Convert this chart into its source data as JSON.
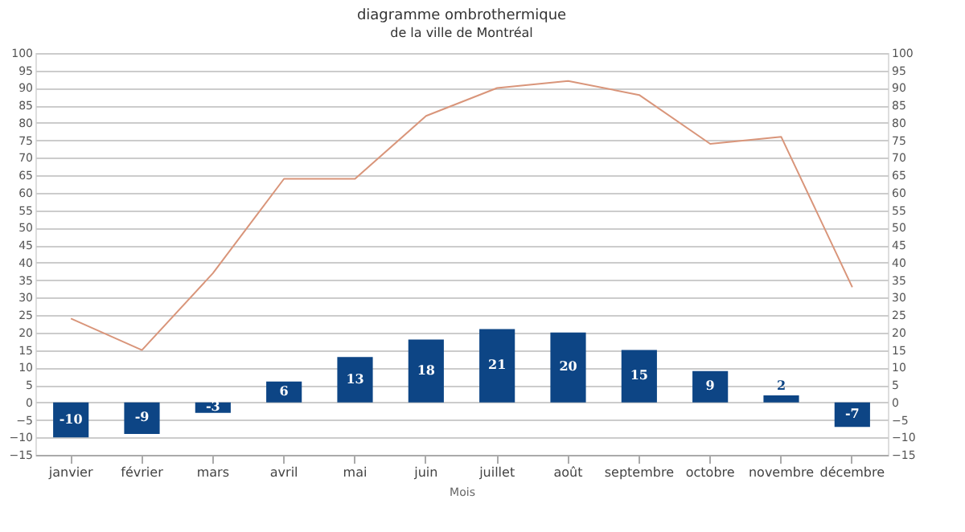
{
  "chart_data": {
    "type": "bar",
    "title": "diagramme ombrothermique",
    "subtitle": "de la ville de Montréal",
    "xlabel": "Mois",
    "categories": [
      "janvier",
      "février",
      "mars",
      "avril",
      "mai",
      "juin",
      "juillet",
      "août",
      "septembre",
      "octobre",
      "novembre",
      "décembre"
    ],
    "series": [
      {
        "color": "#0d4585",
        "values": [
          -10,
          -9,
          -3,
          6,
          13,
          18,
          21,
          20,
          15,
          9,
          2,
          -7
        ],
        "value_labels": [
          "-10",
          "-9",
          "-3",
          "6",
          "13",
          "18",
          "21",
          "20",
          "15",
          "9",
          "2",
          "-7"
        ]
      },
      {
        "type": "line",
        "axis": "y2",
        "color": "#d9957a",
        "values": [
          24,
          15,
          37,
          64,
          64,
          82,
          90,
          92,
          88,
          74,
          76,
          33
        ]
      }
    ],
    "ylim": [
      -15,
      100
    ],
    "yticks": [
      -15,
      -10,
      -5,
      0,
      5,
      10,
      15,
      20,
      25,
      30,
      35,
      40,
      45,
      50,
      55,
      60,
      65,
      70,
      75,
      80,
      85,
      90,
      95,
      100
    ],
    "y2lim": [
      -15,
      100
    ],
    "y2ticks": [
      -15,
      -10,
      -5,
      0,
      5,
      10,
      15,
      20,
      25,
      30,
      35,
      40,
      45,
      50,
      55,
      60,
      65,
      70,
      75,
      80,
      85,
      90,
      95,
      100
    ],
    "grid": "y"
  }
}
